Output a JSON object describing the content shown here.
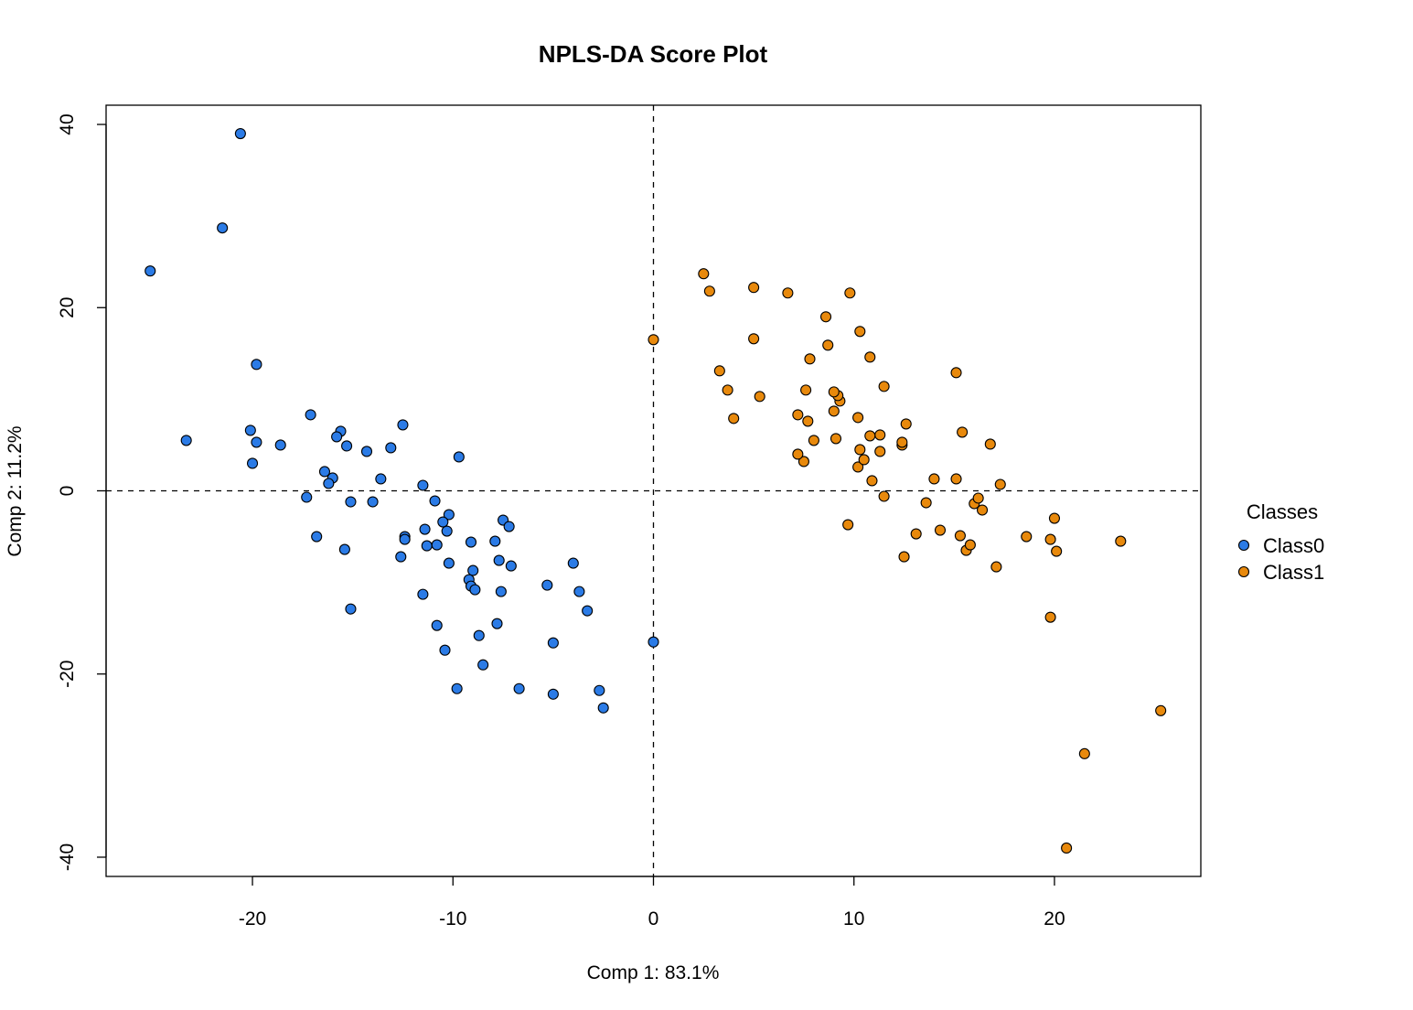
{
  "chart_data": {
    "type": "scatter",
    "title": "NPLS-DA Score Plot",
    "xlabel": "Comp 1: 83.1%",
    "ylabel": "Comp 2: 11.2%",
    "xlim": [
      -27.3,
      27.3
    ],
    "ylim": [
      -42.1,
      42.1
    ],
    "xticks": [
      -20,
      -10,
      0,
      10,
      20
    ],
    "yticks": [
      -40,
      -20,
      0,
      20,
      40
    ],
    "grid": false,
    "reference_lines": {
      "x": 0,
      "y": 0,
      "style": "dashed"
    },
    "legend": {
      "title": "Classes",
      "position": "right"
    },
    "series": [
      {
        "name": "Class0",
        "color": "#2b7be6",
        "points": [
          [
            -20.6,
            39.0
          ],
          [
            -21.5,
            28.7
          ],
          [
            -25.1,
            24.0
          ],
          [
            -19.8,
            13.8
          ],
          [
            -23.3,
            5.5
          ],
          [
            -20.1,
            6.6
          ],
          [
            -19.8,
            5.3
          ],
          [
            -18.6,
            5.0
          ],
          [
            -20.0,
            3.0
          ],
          [
            -17.1,
            8.3
          ],
          [
            -15.6,
            6.5
          ],
          [
            -15.8,
            5.9
          ],
          [
            -15.3,
            4.9
          ],
          [
            -14.3,
            4.3
          ],
          [
            -13.1,
            4.7
          ],
          [
            -12.5,
            7.2
          ],
          [
            -16.4,
            2.1
          ],
          [
            -16.0,
            1.4
          ],
          [
            -16.2,
            0.8
          ],
          [
            -13.6,
            1.3
          ],
          [
            -9.7,
            3.7
          ],
          [
            -11.5,
            0.6
          ],
          [
            -17.3,
            -0.7
          ],
          [
            -15.1,
            -1.2
          ],
          [
            -14.0,
            -1.2
          ],
          [
            -10.9,
            -1.1
          ],
          [
            -10.2,
            -2.6
          ],
          [
            -16.8,
            -5.0
          ],
          [
            -15.4,
            -6.4
          ],
          [
            -12.4,
            -5.0
          ],
          [
            -12.4,
            -5.3
          ],
          [
            -11.4,
            -4.2
          ],
          [
            -10.3,
            -4.4
          ],
          [
            -10.5,
            -3.4
          ],
          [
            -11.3,
            -6.0
          ],
          [
            -10.8,
            -5.9
          ],
          [
            -12.6,
            -7.2
          ],
          [
            -7.5,
            -3.2
          ],
          [
            -7.2,
            -3.9
          ],
          [
            -9.1,
            -5.6
          ],
          [
            -7.9,
            -5.5
          ],
          [
            -7.7,
            -7.6
          ],
          [
            -7.1,
            -8.2
          ],
          [
            -10.2,
            -7.9
          ],
          [
            -9.0,
            -8.7
          ],
          [
            -9.2,
            -9.7
          ],
          [
            -9.1,
            -10.4
          ],
          [
            -8.9,
            -10.8
          ],
          [
            -7.6,
            -11.0
          ],
          [
            -5.3,
            -10.3
          ],
          [
            -4.0,
            -7.9
          ],
          [
            -3.7,
            -11.0
          ],
          [
            -3.3,
            -13.1
          ],
          [
            -11.5,
            -11.3
          ],
          [
            -15.1,
            -12.9
          ],
          [
            -10.8,
            -14.7
          ],
          [
            -7.8,
            -14.5
          ],
          [
            -8.7,
            -15.8
          ],
          [
            -10.4,
            -17.4
          ],
          [
            -5.0,
            -16.6
          ],
          [
            -8.5,
            -19.0
          ],
          [
            -9.8,
            -21.6
          ],
          [
            -6.7,
            -21.6
          ],
          [
            -5.0,
            -22.2
          ],
          [
            -2.7,
            -21.8
          ],
          [
            -2.5,
            -23.7
          ],
          [
            0.0,
            -16.5
          ]
        ]
      },
      {
        "name": "Class1",
        "color": "#e8890c",
        "points": [
          [
            20.6,
            -39.0
          ],
          [
            21.5,
            -28.7
          ],
          [
            25.3,
            -24.0
          ],
          [
            19.8,
            -13.8
          ],
          [
            23.3,
            -5.5
          ],
          [
            20.1,
            -6.6
          ],
          [
            19.8,
            -5.3
          ],
          [
            20.0,
            -3.0
          ],
          [
            18.6,
            -5.0
          ],
          [
            17.1,
            -8.3
          ],
          [
            15.6,
            -6.5
          ],
          [
            15.8,
            -5.9
          ],
          [
            15.3,
            -4.9
          ],
          [
            14.3,
            -4.3
          ],
          [
            13.1,
            -4.7
          ],
          [
            12.5,
            -7.2
          ],
          [
            16.4,
            -2.1
          ],
          [
            16.0,
            -1.4
          ],
          [
            16.2,
            -0.8
          ],
          [
            13.6,
            -1.3
          ],
          [
            9.7,
            -3.7
          ],
          [
            11.5,
            -0.6
          ],
          [
            17.3,
            0.7
          ],
          [
            15.1,
            1.3
          ],
          [
            14.0,
            1.3
          ],
          [
            10.9,
            1.1
          ],
          [
            10.2,
            2.6
          ],
          [
            16.8,
            5.1
          ],
          [
            15.4,
            6.4
          ],
          [
            12.4,
            5.0
          ],
          [
            12.4,
            5.3
          ],
          [
            11.3,
            4.3
          ],
          [
            10.3,
            4.5
          ],
          [
            10.5,
            3.4
          ],
          [
            11.3,
            6.1
          ],
          [
            10.8,
            6.0
          ],
          [
            12.6,
            7.3
          ],
          [
            7.5,
            3.2
          ],
          [
            7.2,
            4.0
          ],
          [
            8.0,
            5.5
          ],
          [
            9.1,
            5.7
          ],
          [
            7.7,
            7.6
          ],
          [
            7.2,
            8.3
          ],
          [
            10.2,
            8.0
          ],
          [
            9.0,
            8.7
          ],
          [
            9.3,
            9.8
          ],
          [
            9.2,
            10.4
          ],
          [
            9.0,
            10.8
          ],
          [
            7.6,
            11.0
          ],
          [
            11.5,
            11.4
          ],
          [
            15.1,
            12.9
          ],
          [
            3.7,
            11.0
          ],
          [
            4.0,
            7.9
          ],
          [
            3.3,
            13.1
          ],
          [
            5.3,
            10.3
          ],
          [
            7.8,
            14.4
          ],
          [
            10.8,
            14.6
          ],
          [
            8.7,
            15.9
          ],
          [
            10.3,
            17.4
          ],
          [
            5.0,
            16.6
          ],
          [
            8.6,
            19.0
          ],
          [
            9.8,
            21.6
          ],
          [
            6.7,
            21.6
          ],
          [
            5.0,
            22.2
          ],
          [
            2.8,
            21.8
          ],
          [
            2.5,
            23.7
          ],
          [
            0.0,
            16.5
          ]
        ]
      }
    ]
  }
}
